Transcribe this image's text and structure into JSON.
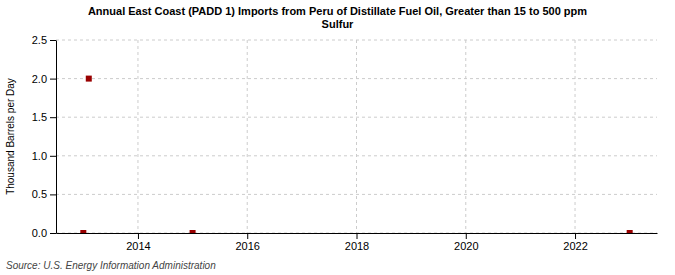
{
  "chart_data": {
    "type": "scatter",
    "title": "Annual East Coast (PADD 1) Imports from Peru of Distillate Fuel Oil, Greater than 15 to 500 ppm\nSulfur",
    "y_label": "Thousand Barrels per Day",
    "annotations": [
      "Source: U.S. Energy Information Administration"
    ],
    "x": [
      2013.0,
      2013.1,
      2015.0,
      2023.0
    ],
    "values": [
      0.0,
      2.0,
      0.0,
      0.0
    ],
    "color": "#990000",
    "marker": "square",
    "xlim": [
      2012.5,
      2023.5
    ],
    "ylim": [
      0,
      2.5
    ],
    "xticks": [
      2014,
      2016,
      2018,
      2020,
      2022
    ],
    "yticks": [
      {
        "value": 0,
        "label": "0.0"
      },
      0.5,
      {
        "value": 1,
        "label": "1.0"
      },
      1.5,
      {
        "value": 2,
        "label": "2.0"
      },
      2.5
    ],
    "grid": true
  }
}
